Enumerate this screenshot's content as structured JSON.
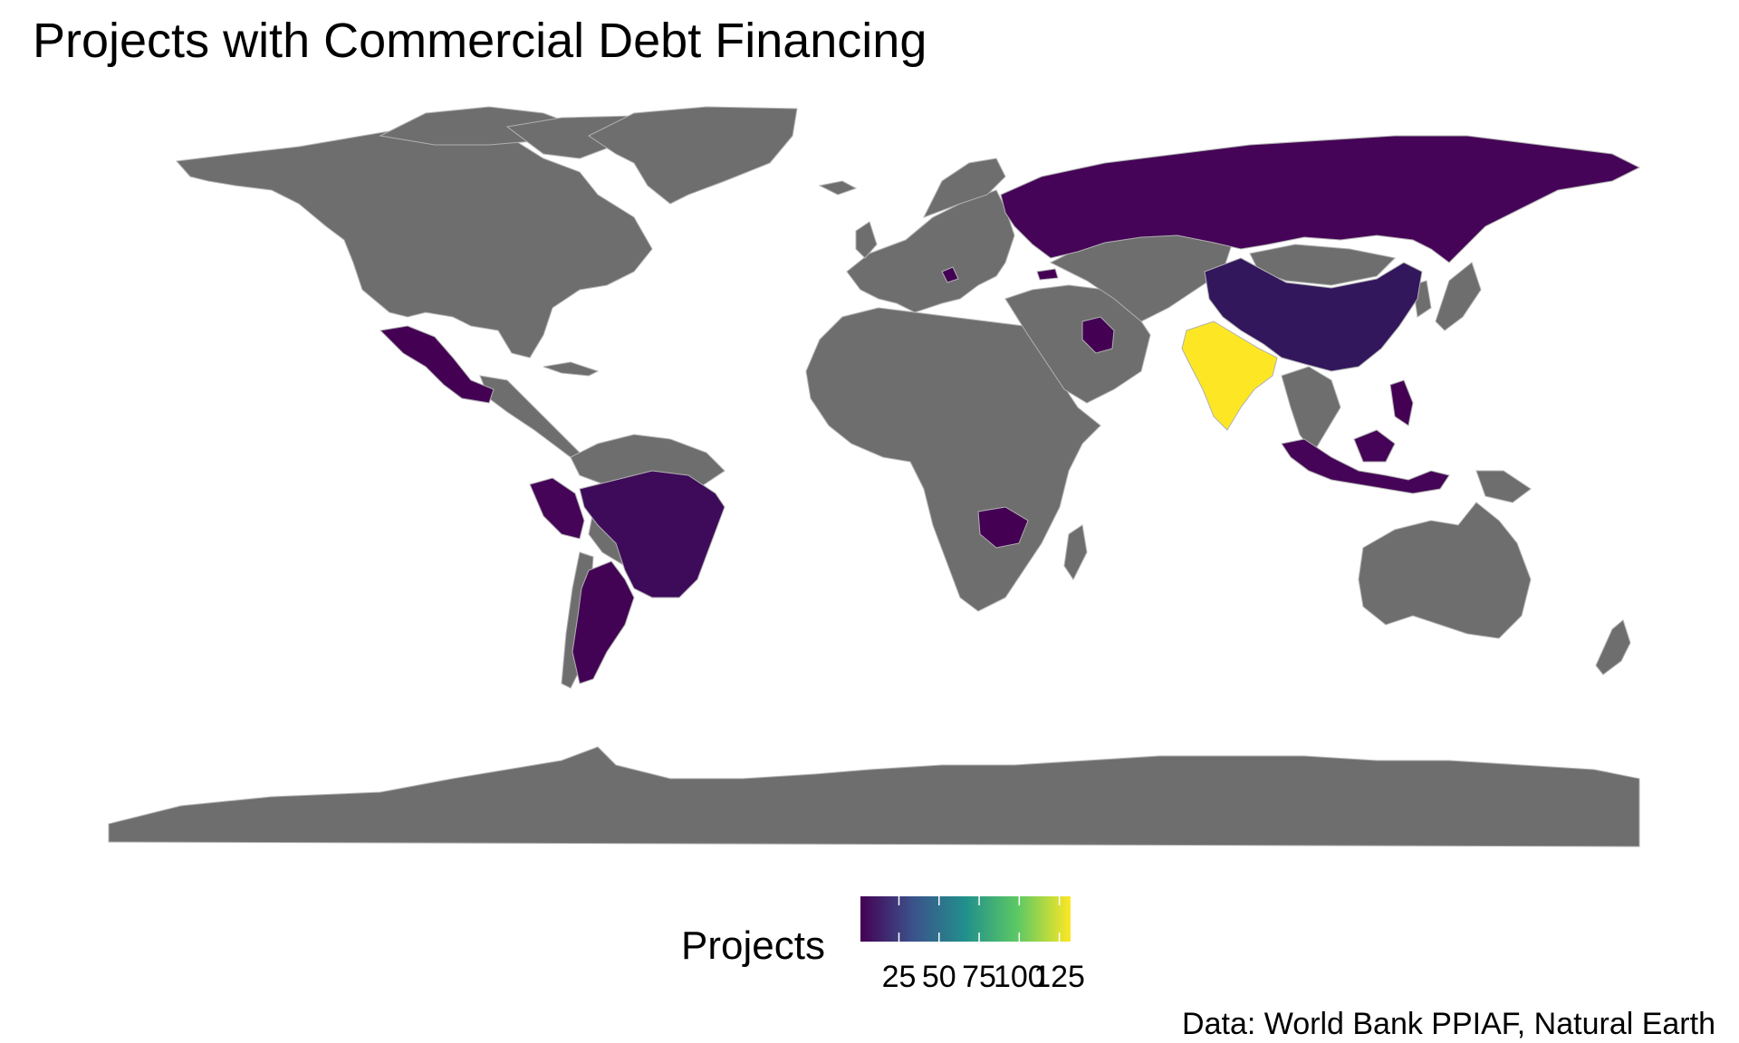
{
  "title": "Projects with Commercial Debt Financing",
  "caption": "Data: World Bank PPIAF, Natural Earth",
  "legend": {
    "title": "Projects",
    "ticks": [
      "25",
      "50",
      "75",
      "100",
      "125"
    ],
    "tick_values": [
      25,
      50,
      75,
      100,
      125
    ],
    "range": [
      1,
      132
    ],
    "palette": "viridis",
    "colors": [
      "#440154",
      "#3b528b",
      "#21908c",
      "#5dc963",
      "#fde725"
    ]
  },
  "map": {
    "projection": "equirectangular",
    "land_color": "#6e6e6e",
    "border_color": "#b0b0b0",
    "background": "#ffffff"
  },
  "chart_data": {
    "type": "choropleth",
    "title": "Projects with Commercial Debt Financing",
    "legend_title": "Projects",
    "legend_placement": "bottom",
    "countries": [
      {
        "name": "India",
        "value": 132
      },
      {
        "name": "China",
        "value": 12
      },
      {
        "name": "Brazil",
        "value": 8
      },
      {
        "name": "Russia",
        "value": 4
      },
      {
        "name": "Indonesia",
        "value": 4
      },
      {
        "name": "Mexico",
        "value": 3
      },
      {
        "name": "Peru",
        "value": 3
      },
      {
        "name": "Argentina",
        "value": 2
      },
      {
        "name": "Philippines",
        "value": 2
      },
      {
        "name": "Iraq",
        "value": 1
      },
      {
        "name": "Zambia",
        "value": 1
      },
      {
        "name": "Serbia",
        "value": 1
      },
      {
        "name": "Georgia",
        "value": 1
      }
    ]
  }
}
